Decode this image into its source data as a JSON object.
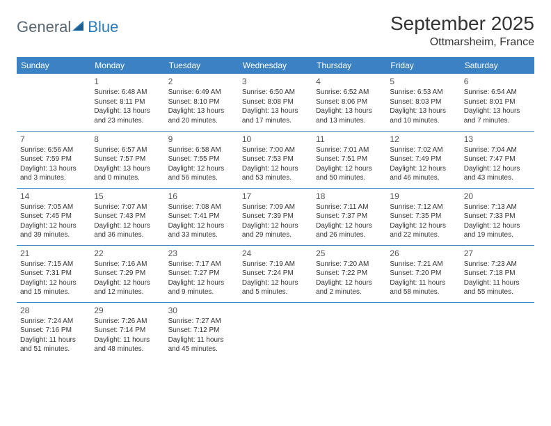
{
  "logo": {
    "general": "General",
    "blue": "Blue"
  },
  "title": "September 2025",
  "location": "Ottmarsheim, France",
  "colors": {
    "header_bg": "#3b82c4",
    "header_text": "#ffffff",
    "border": "#3b82c4",
    "logo_gray": "#5b6770",
    "logo_blue": "#2a7ab9",
    "text": "#333333",
    "background": "#ffffff"
  },
  "weekdays": [
    "Sunday",
    "Monday",
    "Tuesday",
    "Wednesday",
    "Thursday",
    "Friday",
    "Saturday"
  ],
  "weeks": [
    [
      null,
      {
        "n": "1",
        "sr": "Sunrise: 6:48 AM",
        "ss": "Sunset: 8:11 PM",
        "dl": "Daylight: 13 hours and 23 minutes."
      },
      {
        "n": "2",
        "sr": "Sunrise: 6:49 AM",
        "ss": "Sunset: 8:10 PM",
        "dl": "Daylight: 13 hours and 20 minutes."
      },
      {
        "n": "3",
        "sr": "Sunrise: 6:50 AM",
        "ss": "Sunset: 8:08 PM",
        "dl": "Daylight: 13 hours and 17 minutes."
      },
      {
        "n": "4",
        "sr": "Sunrise: 6:52 AM",
        "ss": "Sunset: 8:06 PM",
        "dl": "Daylight: 13 hours and 13 minutes."
      },
      {
        "n": "5",
        "sr": "Sunrise: 6:53 AM",
        "ss": "Sunset: 8:03 PM",
        "dl": "Daylight: 13 hours and 10 minutes."
      },
      {
        "n": "6",
        "sr": "Sunrise: 6:54 AM",
        "ss": "Sunset: 8:01 PM",
        "dl": "Daylight: 13 hours and 7 minutes."
      }
    ],
    [
      {
        "n": "7",
        "sr": "Sunrise: 6:56 AM",
        "ss": "Sunset: 7:59 PM",
        "dl": "Daylight: 13 hours and 3 minutes."
      },
      {
        "n": "8",
        "sr": "Sunrise: 6:57 AM",
        "ss": "Sunset: 7:57 PM",
        "dl": "Daylight: 13 hours and 0 minutes."
      },
      {
        "n": "9",
        "sr": "Sunrise: 6:58 AM",
        "ss": "Sunset: 7:55 PM",
        "dl": "Daylight: 12 hours and 56 minutes."
      },
      {
        "n": "10",
        "sr": "Sunrise: 7:00 AM",
        "ss": "Sunset: 7:53 PM",
        "dl": "Daylight: 12 hours and 53 minutes."
      },
      {
        "n": "11",
        "sr": "Sunrise: 7:01 AM",
        "ss": "Sunset: 7:51 PM",
        "dl": "Daylight: 12 hours and 50 minutes."
      },
      {
        "n": "12",
        "sr": "Sunrise: 7:02 AM",
        "ss": "Sunset: 7:49 PM",
        "dl": "Daylight: 12 hours and 46 minutes."
      },
      {
        "n": "13",
        "sr": "Sunrise: 7:04 AM",
        "ss": "Sunset: 7:47 PM",
        "dl": "Daylight: 12 hours and 43 minutes."
      }
    ],
    [
      {
        "n": "14",
        "sr": "Sunrise: 7:05 AM",
        "ss": "Sunset: 7:45 PM",
        "dl": "Daylight: 12 hours and 39 minutes."
      },
      {
        "n": "15",
        "sr": "Sunrise: 7:07 AM",
        "ss": "Sunset: 7:43 PM",
        "dl": "Daylight: 12 hours and 36 minutes."
      },
      {
        "n": "16",
        "sr": "Sunrise: 7:08 AM",
        "ss": "Sunset: 7:41 PM",
        "dl": "Daylight: 12 hours and 33 minutes."
      },
      {
        "n": "17",
        "sr": "Sunrise: 7:09 AM",
        "ss": "Sunset: 7:39 PM",
        "dl": "Daylight: 12 hours and 29 minutes."
      },
      {
        "n": "18",
        "sr": "Sunrise: 7:11 AM",
        "ss": "Sunset: 7:37 PM",
        "dl": "Daylight: 12 hours and 26 minutes."
      },
      {
        "n": "19",
        "sr": "Sunrise: 7:12 AM",
        "ss": "Sunset: 7:35 PM",
        "dl": "Daylight: 12 hours and 22 minutes."
      },
      {
        "n": "20",
        "sr": "Sunrise: 7:13 AM",
        "ss": "Sunset: 7:33 PM",
        "dl": "Daylight: 12 hours and 19 minutes."
      }
    ],
    [
      {
        "n": "21",
        "sr": "Sunrise: 7:15 AM",
        "ss": "Sunset: 7:31 PM",
        "dl": "Daylight: 12 hours and 15 minutes."
      },
      {
        "n": "22",
        "sr": "Sunrise: 7:16 AM",
        "ss": "Sunset: 7:29 PM",
        "dl": "Daylight: 12 hours and 12 minutes."
      },
      {
        "n": "23",
        "sr": "Sunrise: 7:17 AM",
        "ss": "Sunset: 7:27 PM",
        "dl": "Daylight: 12 hours and 9 minutes."
      },
      {
        "n": "24",
        "sr": "Sunrise: 7:19 AM",
        "ss": "Sunset: 7:24 PM",
        "dl": "Daylight: 12 hours and 5 minutes."
      },
      {
        "n": "25",
        "sr": "Sunrise: 7:20 AM",
        "ss": "Sunset: 7:22 PM",
        "dl": "Daylight: 12 hours and 2 minutes."
      },
      {
        "n": "26",
        "sr": "Sunrise: 7:21 AM",
        "ss": "Sunset: 7:20 PM",
        "dl": "Daylight: 11 hours and 58 minutes."
      },
      {
        "n": "27",
        "sr": "Sunrise: 7:23 AM",
        "ss": "Sunset: 7:18 PM",
        "dl": "Daylight: 11 hours and 55 minutes."
      }
    ],
    [
      {
        "n": "28",
        "sr": "Sunrise: 7:24 AM",
        "ss": "Sunset: 7:16 PM",
        "dl": "Daylight: 11 hours and 51 minutes."
      },
      {
        "n": "29",
        "sr": "Sunrise: 7:26 AM",
        "ss": "Sunset: 7:14 PM",
        "dl": "Daylight: 11 hours and 48 minutes."
      },
      {
        "n": "30",
        "sr": "Sunrise: 7:27 AM",
        "ss": "Sunset: 7:12 PM",
        "dl": "Daylight: 11 hours and 45 minutes."
      },
      null,
      null,
      null,
      null
    ]
  ]
}
